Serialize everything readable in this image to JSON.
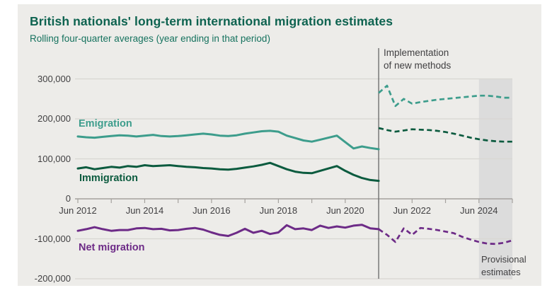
{
  "page": {
    "background": "#ffffff",
    "card_background": "#edece9"
  },
  "header": {
    "title": "British nationals' long-term international migration estimates",
    "subtitle": "Rolling four-quarter averages (year ending in that period)"
  },
  "colors": {
    "title_green": "#0e6350",
    "emigration": "#3d9d8c",
    "immigration": "#0c5b3f",
    "net_migration": "#6d2b87",
    "gridline": "#d8d6d2",
    "axis_line": "#a5a29e",
    "annotation_text": "#414042",
    "method_line": "#6f6f6f",
    "provisional_band": "#dcdcdc"
  },
  "annotations": {
    "method_change": {
      "line1": "Implementation",
      "line2": "of new methods"
    },
    "provisional": {
      "line1": "Provisional",
      "line2": "estimates"
    }
  },
  "chart_data": {
    "type": "line",
    "title": "British nationals' long-term international migration estimates",
    "subtitle": "Rolling four-quarter averages (year ending in that period)",
    "x_unit": "year ending (decimal years, .5 = June)",
    "y_unit": "people per year (values stored in thousands)",
    "x_range": [
      2012.5,
      2025.5
    ],
    "y_range": [
      -200000,
      300000
    ],
    "grid": "horizontal",
    "legend_position": "inline-series-labels",
    "x_start": 2012.5,
    "x_step": 0.25,
    "x_tick_step_years": 1,
    "method_change_x": 2021.5,
    "provisional_span": [
      2024.5,
      2025.5
    ],
    "y_ticks": [
      {
        "value": 300000,
        "label": "300,000"
      },
      {
        "value": 200000,
        "label": "200,000"
      },
      {
        "value": 100000,
        "label": "100,000"
      },
      {
        "value": 0,
        "label": "0"
      },
      {
        "value": -100000,
        "label": "-100,000"
      },
      {
        "value": -200000,
        "label": "-200,000"
      }
    ],
    "x_labels": [
      {
        "x": 2012.5,
        "label": "Jun 2012"
      },
      {
        "x": 2014.5,
        "label": "Jun 2014"
      },
      {
        "x": 2016.5,
        "label": "Jun 2016"
      },
      {
        "x": 2018.5,
        "label": "Jun 2018"
      },
      {
        "x": 2020.5,
        "label": "Jun 2020"
      },
      {
        "x": 2022.5,
        "label": "Jun 2022"
      },
      {
        "x": 2024.5,
        "label": "Jun 2024"
      }
    ],
    "series": [
      {
        "name": "Emigration",
        "color": "#3d9d8c",
        "style_before_break": "solid",
        "style_after_break": "dashed",
        "values_thousands_solid": [
          156,
          154,
          153,
          155,
          157,
          159,
          158,
          156,
          158,
          160,
          157,
          156,
          157,
          159,
          161,
          163,
          161,
          158,
          157,
          159,
          163,
          166,
          169,
          170,
          168,
          158,
          152,
          146,
          143,
          148,
          153,
          158,
          142,
          126,
          131,
          127,
          124
        ],
        "values_thousands_dashed": [
          265,
          283,
          232,
          250,
          238,
          242,
          245,
          248,
          250,
          252,
          254,
          256,
          258,
          258,
          256,
          253,
          253
        ]
      },
      {
        "name": "Immigration",
        "color": "#0c5b3f",
        "style_before_break": "solid",
        "style_after_break": "dashed",
        "values_thousands_solid": [
          76,
          79,
          74,
          77,
          80,
          78,
          82,
          80,
          84,
          82,
          83,
          84,
          82,
          80,
          79,
          77,
          76,
          74,
          73,
          75,
          78,
          81,
          85,
          90,
          82,
          74,
          68,
          65,
          64,
          70,
          76,
          82,
          70,
          60,
          52,
          47,
          45
        ],
        "values_thousands_dashed": [
          177,
          172,
          168,
          171,
          174,
          173,
          172,
          170,
          167,
          163,
          158,
          153,
          149,
          146,
          144,
          143,
          143
        ]
      },
      {
        "name": "Net migration",
        "color": "#6d2b87",
        "style_before_break": "solid",
        "style_after_break": "dashed",
        "values_thousands_solid": [
          -80,
          -76,
          -71,
          -76,
          -80,
          -78,
          -78,
          -74,
          -73,
          -76,
          -75,
          -79,
          -78,
          -75,
          -73,
          -77,
          -84,
          -90,
          -93,
          -85,
          -75,
          -85,
          -80,
          -88,
          -84,
          -66,
          -76,
          -74,
          -78,
          -67,
          -73,
          -69,
          -72,
          -67,
          -65,
          -74,
          -76
        ],
        "values_thousands_dashed": [
          -76,
          -90,
          -108,
          -74,
          -90,
          -73,
          -75,
          -78,
          -82,
          -86,
          -95,
          -102,
          -108,
          -112,
          -113,
          -110,
          -104
        ]
      }
    ]
  }
}
